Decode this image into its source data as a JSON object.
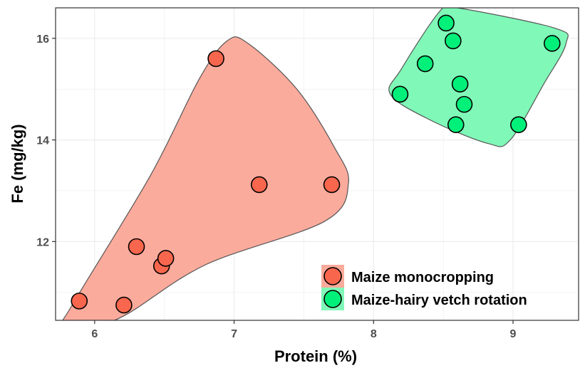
{
  "chart_data": {
    "type": "scatter",
    "title": "",
    "xlabel": "Protein (%)",
    "ylabel": "Fe (mg/kg)",
    "xlim": [
      5.72,
      9.47
    ],
    "ylim": [
      10.45,
      16.6
    ],
    "x_ticks": [
      6,
      7,
      8,
      9
    ],
    "y_ticks": [
      12,
      14,
      16
    ],
    "grid": true,
    "legend_position": "bottom-right",
    "series": [
      {
        "name": "Maize monocropping",
        "color": "#F8674D",
        "hull_color": "#FBAB9C",
        "points": [
          {
            "x": 5.89,
            "y": 10.83
          },
          {
            "x": 6.21,
            "y": 10.75
          },
          {
            "x": 6.3,
            "y": 11.9
          },
          {
            "x": 6.48,
            "y": 11.52
          },
          {
            "x": 6.51,
            "y": 11.67
          },
          {
            "x": 6.87,
            "y": 15.6
          },
          {
            "x": 7.18,
            "y": 13.12
          },
          {
            "x": 7.7,
            "y": 13.12
          }
        ],
        "hull": [
          [
            5.79,
            10.4
          ],
          [
            5.85,
            10.8
          ],
          [
            6.4,
            13.3
          ],
          [
            6.75,
            15.2
          ],
          [
            6.95,
            15.95
          ],
          [
            7.1,
            15.9
          ],
          [
            7.45,
            15.0
          ],
          [
            7.72,
            13.85
          ],
          [
            7.82,
            13.15
          ],
          [
            7.65,
            12.4
          ],
          [
            6.8,
            11.55
          ],
          [
            6.25,
            10.6
          ],
          [
            6.05,
            10.4
          ]
        ]
      },
      {
        "name": "Maize-hairy vetch rotation",
        "color": "#00F07A",
        "hull_color": "#80F8B8",
        "points": [
          {
            "x": 8.19,
            "y": 14.9
          },
          {
            "x": 8.37,
            "y": 15.5
          },
          {
            "x": 8.52,
            "y": 16.3
          },
          {
            "x": 8.57,
            "y": 15.95
          },
          {
            "x": 8.59,
            "y": 14.3
          },
          {
            "x": 8.62,
            "y": 15.1
          },
          {
            "x": 8.65,
            "y": 14.7
          },
          {
            "x": 9.04,
            "y": 14.3
          },
          {
            "x": 9.28,
            "y": 15.9
          }
        ],
        "hull": [
          [
            8.12,
            14.9
          ],
          [
            8.2,
            15.4
          ],
          [
            8.48,
            16.55
          ],
          [
            8.6,
            16.6
          ],
          [
            9.3,
            16.2
          ],
          [
            9.38,
            15.9
          ],
          [
            9.22,
            15.1
          ],
          [
            8.98,
            14.0
          ],
          [
            8.82,
            13.93
          ],
          [
            8.4,
            14.4
          ]
        ]
      }
    ]
  }
}
